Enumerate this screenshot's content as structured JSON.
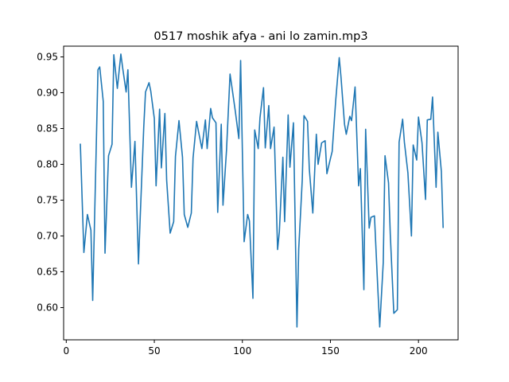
{
  "chart_data": {
    "type": "line",
    "title": "0517 moshik afya - ani lo zamin.mp3",
    "xlabel": "",
    "ylabel": "",
    "xlim": [
      -1.5,
      222.5
    ],
    "ylim": [
      0.555,
      0.965
    ],
    "xticks": [
      0,
      50,
      100,
      150,
      200
    ],
    "yticks": [
      0.6,
      0.65,
      0.7,
      0.75,
      0.8,
      0.85,
      0.9,
      0.95
    ],
    "ytick_labels": [
      "0.60",
      "0.65",
      "0.70",
      "0.75",
      "0.80",
      "0.85",
      "0.90",
      "0.95"
    ],
    "grid": false,
    "series": [
      {
        "color": "#1f77b4",
        "x": [
          8,
          10,
          12,
          14,
          15,
          17,
          18,
          19,
          21,
          22,
          24,
          26,
          27,
          29,
          31,
          32,
          34,
          35,
          37,
          39,
          41,
          42,
          44,
          45,
          47,
          48,
          50,
          51,
          53,
          54,
          56,
          57,
          59,
          61,
          62,
          64,
          66,
          67,
          69,
          71,
          72,
          74,
          75,
          77,
          79,
          80,
          82,
          83,
          85,
          86,
          88,
          89,
          91,
          93,
          94,
          96,
          98,
          99,
          101,
          103,
          104,
          106,
          107,
          109,
          110,
          112,
          113,
          115,
          116,
          118,
          120,
          121,
          123,
          124,
          126,
          127,
          129,
          131,
          132,
          134,
          135,
          137,
          138,
          140,
          142,
          143,
          145,
          147,
          148,
          150,
          151,
          153,
          155,
          156,
          158,
          159,
          161,
          162,
          164,
          166,
          167,
          169,
          170,
          172,
          173,
          175,
          177,
          178,
          180,
          181,
          183,
          184,
          186,
          188,
          189,
          191,
          192,
          194,
          196,
          197,
          199,
          200,
          202,
          204,
          205,
          207,
          208,
          210,
          211,
          213,
          214
        ],
        "y": [
          0.828,
          0.677,
          0.73,
          0.708,
          0.61,
          0.822,
          0.932,
          0.936,
          0.888,
          0.676,
          0.812,
          0.828,
          0.953,
          0.906,
          0.954,
          0.935,
          0.901,
          0.932,
          0.768,
          0.832,
          0.661,
          0.727,
          0.852,
          0.901,
          0.914,
          0.902,
          0.864,
          0.77,
          0.877,
          0.795,
          0.871,
          0.778,
          0.704,
          0.72,
          0.811,
          0.861,
          0.81,
          0.73,
          0.712,
          0.732,
          0.809,
          0.86,
          0.847,
          0.822,
          0.862,
          0.822,
          0.878,
          0.865,
          0.858,
          0.733,
          0.856,
          0.743,
          0.82,
          0.926,
          0.909,
          0.874,
          0.836,
          0.945,
          0.692,
          0.73,
          0.721,
          0.613,
          0.848,
          0.822,
          0.865,
          0.907,
          0.823,
          0.882,
          0.822,
          0.852,
          0.681,
          0.706,
          0.81,
          0.72,
          0.869,
          0.796,
          0.858,
          0.573,
          0.682,
          0.778,
          0.868,
          0.86,
          0.794,
          0.732,
          0.842,
          0.8,
          0.83,
          0.833,
          0.787,
          0.808,
          0.818,
          0.889,
          0.949,
          0.922,
          0.856,
          0.842,
          0.867,
          0.861,
          0.908,
          0.77,
          0.794,
          0.625,
          0.849,
          0.711,
          0.726,
          0.728,
          0.622,
          0.573,
          0.663,
          0.812,
          0.774,
          0.702,
          0.592,
          0.597,
          0.831,
          0.863,
          0.831,
          0.788,
          0.7,
          0.827,
          0.806,
          0.866,
          0.83,
          0.751,
          0.862,
          0.863,
          0.894,
          0.768,
          0.845,
          0.79,
          0.712
        ]
      }
    ]
  }
}
